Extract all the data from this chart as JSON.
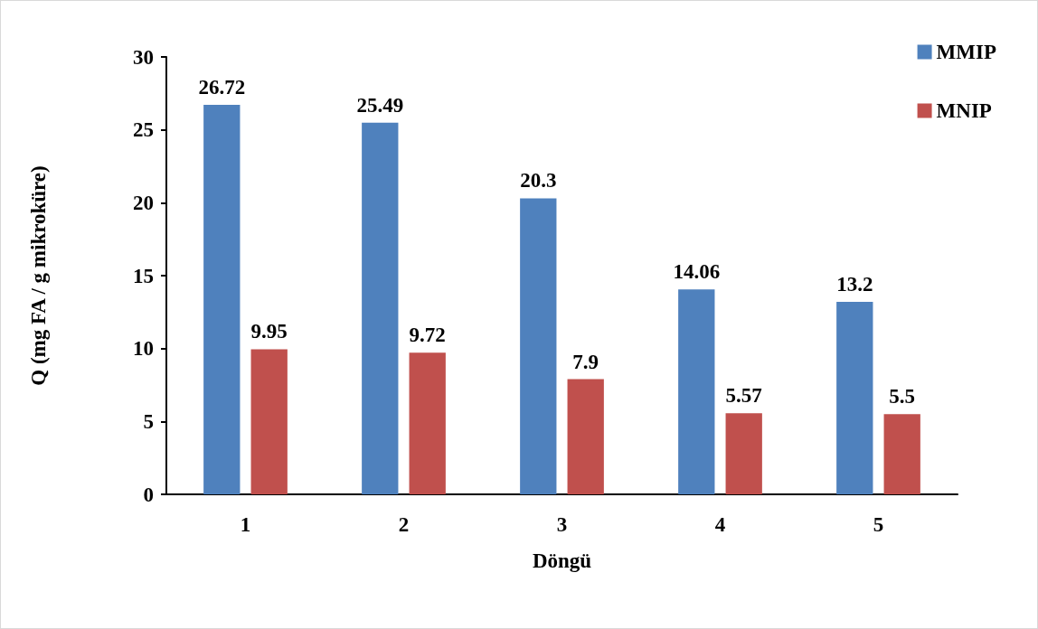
{
  "chart_data": {
    "type": "bar",
    "xlabel": "Döngü",
    "ylabel": "Q (mg FA / g mikroküre)",
    "categories": [
      "1",
      "2",
      "3",
      "4",
      "5"
    ],
    "series": [
      {
        "name": "MMIP",
        "color": "#4f81bd",
        "values": [
          26.72,
          25.49,
          20.3,
          14.06,
          13.2
        ]
      },
      {
        "name": "MNIP",
        "color": "#c0504d",
        "values": [
          9.95,
          9.72,
          7.9,
          5.57,
          5.5
        ]
      }
    ],
    "ylim": [
      0,
      30
    ],
    "yticks": [
      0,
      5,
      10,
      15,
      20,
      25,
      30
    ],
    "grid": false,
    "legend": "top right",
    "data_labels": true
  }
}
